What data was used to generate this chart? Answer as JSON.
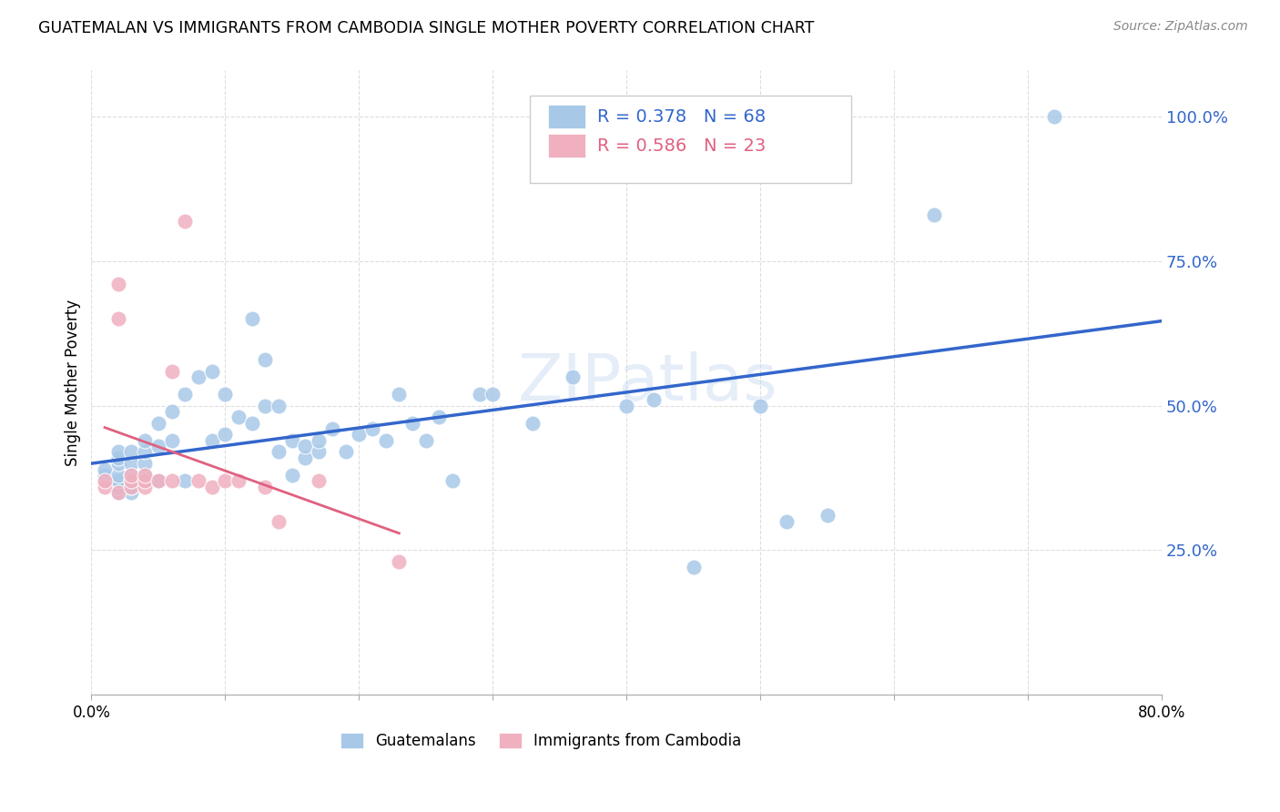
{
  "title": "GUATEMALAN VS IMMIGRANTS FROM CAMBODIA SINGLE MOTHER POVERTY CORRELATION CHART",
  "source": "Source: ZipAtlas.com",
  "ylabel": "Single Mother Poverty",
  "xlim": [
    0.0,
    0.8
  ],
  "ylim": [
    0.0,
    1.08
  ],
  "ytick_vals": [
    0.25,
    0.5,
    0.75,
    1.0
  ],
  "ytick_labels": [
    "25.0%",
    "50.0%",
    "75.0%",
    "100.0%"
  ],
  "xtick_vals": [
    0.0,
    0.1,
    0.2,
    0.3,
    0.4,
    0.5,
    0.6,
    0.7,
    0.8
  ],
  "xtick_labels": [
    "0.0%",
    "",
    "",
    "",
    "",
    "",
    "",
    "",
    "80.0%"
  ],
  "blue_R": 0.378,
  "blue_N": 68,
  "pink_R": 0.586,
  "pink_N": 23,
  "blue_color": "#a8c8e8",
  "pink_color": "#f0b0c0",
  "blue_line_color": "#3366cc",
  "pink_line_color": "#e06080",
  "watermark": "ZIPatlas",
  "blue_scatter_x": [
    0.01,
    0.01,
    0.01,
    0.02,
    0.02,
    0.02,
    0.02,
    0.02,
    0.02,
    0.02,
    0.03,
    0.03,
    0.03,
    0.03,
    0.03,
    0.03,
    0.04,
    0.04,
    0.04,
    0.04,
    0.04,
    0.05,
    0.05,
    0.05,
    0.06,
    0.06,
    0.07,
    0.07,
    0.08,
    0.09,
    0.09,
    0.1,
    0.1,
    0.11,
    0.12,
    0.12,
    0.13,
    0.13,
    0.14,
    0.14,
    0.15,
    0.15,
    0.16,
    0.16,
    0.17,
    0.17,
    0.18,
    0.19,
    0.2,
    0.21,
    0.22,
    0.23,
    0.24,
    0.25,
    0.26,
    0.27,
    0.29,
    0.3,
    0.33,
    0.36,
    0.4,
    0.42,
    0.45,
    0.5,
    0.52,
    0.55,
    0.63,
    0.72
  ],
  "blue_scatter_y": [
    0.37,
    0.38,
    0.39,
    0.35,
    0.36,
    0.37,
    0.38,
    0.4,
    0.41,
    0.42,
    0.35,
    0.36,
    0.37,
    0.38,
    0.4,
    0.42,
    0.37,
    0.38,
    0.4,
    0.42,
    0.44,
    0.37,
    0.43,
    0.47,
    0.44,
    0.49,
    0.37,
    0.52,
    0.55,
    0.44,
    0.56,
    0.45,
    0.52,
    0.48,
    0.47,
    0.65,
    0.5,
    0.58,
    0.42,
    0.5,
    0.38,
    0.44,
    0.41,
    0.43,
    0.42,
    0.44,
    0.46,
    0.42,
    0.45,
    0.46,
    0.44,
    0.52,
    0.47,
    0.44,
    0.48,
    0.37,
    0.52,
    0.52,
    0.47,
    0.55,
    0.5,
    0.51,
    0.22,
    0.5,
    0.3,
    0.31,
    0.83,
    1.0
  ],
  "pink_scatter_x": [
    0.01,
    0.01,
    0.02,
    0.02,
    0.02,
    0.03,
    0.03,
    0.03,
    0.04,
    0.04,
    0.04,
    0.05,
    0.06,
    0.06,
    0.07,
    0.08,
    0.09,
    0.1,
    0.11,
    0.13,
    0.14,
    0.17,
    0.23
  ],
  "pink_scatter_y": [
    0.36,
    0.37,
    0.35,
    0.65,
    0.71,
    0.36,
    0.37,
    0.38,
    0.36,
    0.37,
    0.38,
    0.37,
    0.37,
    0.56,
    0.82,
    0.37,
    0.36,
    0.37,
    0.37,
    0.36,
    0.3,
    0.37,
    0.23
  ]
}
